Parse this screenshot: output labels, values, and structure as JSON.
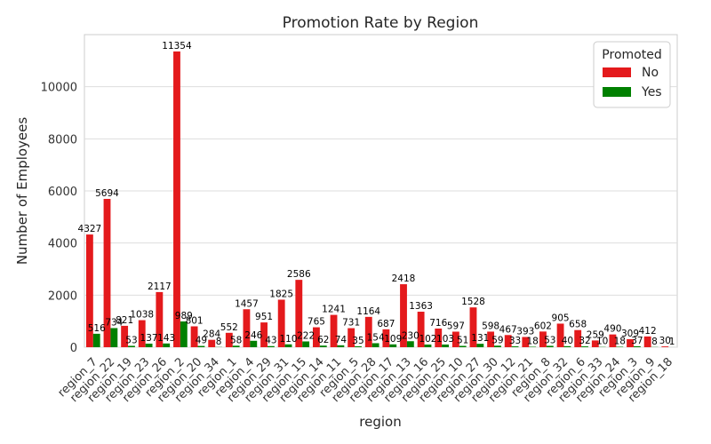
{
  "chart_data": {
    "type": "bar",
    "title": "Promotion Rate by Region",
    "xlabel": "region",
    "ylabel": "Number of Employees",
    "ylim": [
      0,
      12000
    ],
    "yticks": [
      0,
      2000,
      4000,
      6000,
      8000,
      10000
    ],
    "grid": true,
    "legend_title": "Promoted",
    "legend_position": "top-right",
    "categories": [
      "region_7",
      "region_22",
      "region_19",
      "region_23",
      "region_26",
      "region_2",
      "region_20",
      "region_34",
      "region_1",
      "region_4",
      "region_29",
      "region_31",
      "region_15",
      "region_14",
      "region_11",
      "region_5",
      "region_28",
      "region_17",
      "region_13",
      "region_16",
      "region_25",
      "region_10",
      "region_27",
      "region_30",
      "region_12",
      "region_21",
      "region_8",
      "region_32",
      "region_6",
      "region_33",
      "region_24",
      "region_3",
      "region_9",
      "region_18"
    ],
    "series": [
      {
        "name": "No",
        "color": "#e41a1c",
        "values": [
          4327,
          5694,
          821,
          1038,
          2117,
          11354,
          801,
          284,
          552,
          1457,
          951,
          1825,
          2586,
          765,
          1241,
          731,
          1164,
          687,
          2418,
          1363,
          716,
          597,
          1528,
          598,
          467,
          393,
          602,
          905,
          658,
          259,
          490,
          309,
          412,
          30
        ]
      },
      {
        "name": "Yes",
        "color": "#008000",
        "values": [
          516,
          734,
          53,
          137,
          143,
          989,
          49,
          8,
          58,
          246,
          43,
          110,
          222,
          62,
          74,
          35,
          154,
          109,
          230,
          102,
          103,
          51,
          131,
          59,
          33,
          18,
          53,
          40,
          32,
          10,
          18,
          37,
          8,
          1
        ]
      }
    ]
  }
}
